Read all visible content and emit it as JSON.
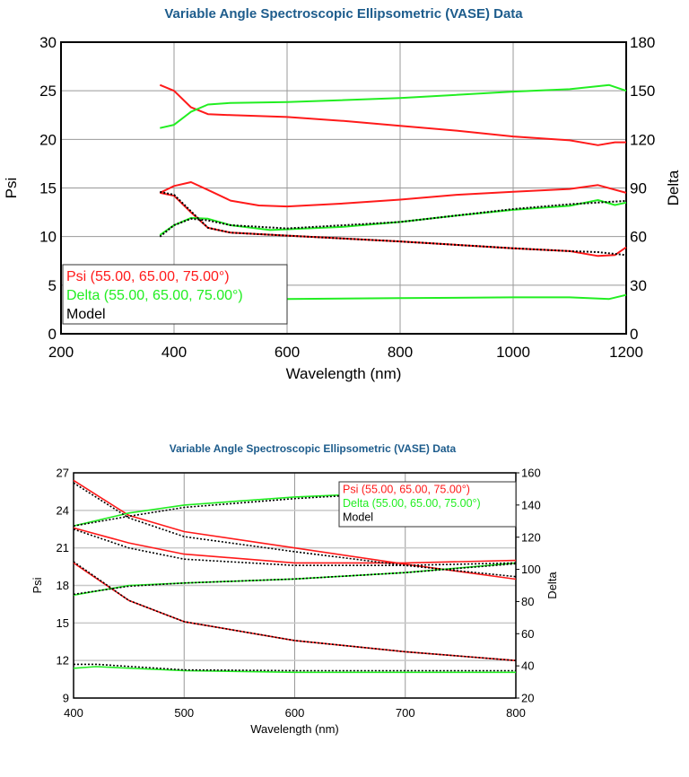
{
  "chart_data": [
    {
      "type": "line",
      "title": "Variable Angle Spectroscopic Ellipsometric (VASE) Data",
      "xlabel": "Wavelength (nm)",
      "ylabel": "Psi",
      "y2label": "Delta",
      "xlim": [
        200,
        1200
      ],
      "ylim": [
        0,
        30
      ],
      "y2lim": [
        0,
        180
      ],
      "xticks": [
        "200",
        "400",
        "600",
        "800",
        "1000",
        "1200"
      ],
      "yticks": [
        "0",
        "5",
        "10",
        "15",
        "20",
        "25",
        "30"
      ],
      "y2ticks": [
        "0",
        "30",
        "60",
        "90",
        "120",
        "150",
        "180"
      ],
      "grid": true,
      "legend_position": "bottom-left",
      "legend": [
        {
          "label": "Psi (55.00, 65.00, 75.00°)",
          "color": "#ff1a1a"
        },
        {
          "label": "Delta (55.00, 65.00, 75.00°)",
          "color": "#22ee22"
        },
        {
          "label": "Model",
          "color": "#000000"
        }
      ],
      "series": [
        {
          "kind": "psi",
          "axis": "left",
          "x": [
            375,
            400,
            430,
            460,
            500,
            600,
            700,
            800,
            900,
            1000,
            1100,
            1150,
            1180,
            1200
          ],
          "y": [
            25.6,
            25.0,
            23.3,
            22.6,
            22.5,
            22.3,
            21.9,
            21.4,
            20.9,
            20.3,
            19.9,
            19.4,
            19.7,
            19.7
          ]
        },
        {
          "kind": "psi",
          "axis": "left",
          "x": [
            375,
            400,
            430,
            460,
            500,
            550,
            600,
            700,
            800,
            900,
            1000,
            1100,
            1150,
            1200
          ],
          "y": [
            14.5,
            15.2,
            15.6,
            14.8,
            13.7,
            13.2,
            13.1,
            13.4,
            13.8,
            14.3,
            14.6,
            14.9,
            15.3,
            14.5
          ]
        },
        {
          "kind": "psi",
          "axis": "left",
          "x": [
            375,
            400,
            430,
            460,
            500,
            600,
            800,
            1000,
            1100,
            1150,
            1180,
            1200
          ],
          "y": [
            14.5,
            14.2,
            12.5,
            10.9,
            10.4,
            10.1,
            9.5,
            8.8,
            8.5,
            8.0,
            8.1,
            8.9
          ]
        },
        {
          "kind": "model",
          "axis": "left",
          "x": [
            375,
            400,
            430,
            460,
            500,
            600,
            800,
            1000,
            1100,
            1150,
            1200
          ],
          "y": [
            14.6,
            14.3,
            12.6,
            10.9,
            10.4,
            10.1,
            9.5,
            8.8,
            8.5,
            8.4,
            8.1
          ]
        },
        {
          "kind": "delta",
          "axis": "right",
          "x": [
            375,
            400,
            430,
            460,
            500,
            600,
            800,
            1000,
            1100,
            1170,
            1200
          ],
          "y": [
            127,
            129,
            137,
            141.5,
            142.5,
            143,
            145.5,
            149.5,
            151,
            153.5,
            150
          ]
        },
        {
          "kind": "delta",
          "axis": "right",
          "x": [
            375,
            400,
            430,
            460,
            500,
            570,
            700,
            800,
            900,
            1000,
            1100,
            1150,
            1180,
            1200
          ],
          "y": [
            61,
            67,
            71.5,
            71,
            67,
            64,
            66,
            69,
            73,
            76.5,
            79,
            82.5,
            79.5,
            81
          ]
        },
        {
          "kind": "model",
          "axis": "right",
          "x": [
            375,
            400,
            430,
            460,
            500,
            600,
            800,
            1000,
            1100,
            1200
          ],
          "y": [
            60,
            67,
            71,
            70,
            67,
            65,
            69,
            77,
            80,
            82
          ]
        },
        {
          "kind": "delta",
          "axis": "right",
          "x": [
            480,
            600,
            800,
            1000,
            1100,
            1170,
            1200
          ],
          "y": [
            21.5,
            21.5,
            22,
            22.5,
            22.5,
            21.5,
            24
          ]
        }
      ]
    },
    {
      "type": "line",
      "title": "Variable Angle Spectroscopic Ellipsometric (VASE) Data",
      "xlabel": "Wavelength (nm)",
      "ylabel": "Psi",
      "y2label": "Delta",
      "xlim": [
        400,
        800
      ],
      "ylim": [
        9,
        27
      ],
      "y2lim": [
        20,
        160
      ],
      "xticks": [
        "400",
        "500",
        "600",
        "700",
        "800"
      ],
      "yticks": [
        "9",
        "12",
        "15",
        "18",
        "21",
        "24",
        "27"
      ],
      "y2ticks": [
        "20",
        "40",
        "60",
        "80",
        "100",
        "120",
        "140",
        "160"
      ],
      "grid": true,
      "legend_position": "top-right",
      "legend": [
        {
          "label": "Psi (55.00, 65.00, 75.00°)",
          "color": "#ff1a1a"
        },
        {
          "label": "Delta (55.00, 65.00, 75.00°)",
          "color": "#22ee22"
        },
        {
          "label": "Model",
          "color": "#000000"
        }
      ],
      "series": [
        {
          "kind": "psi",
          "axis": "left",
          "x": [
            400,
            450,
            500,
            600,
            700,
            800
          ],
          "y": [
            26.4,
            23.6,
            22.3,
            21.0,
            19.7,
            18.5
          ]
        },
        {
          "kind": "model",
          "axis": "left",
          "x": [
            400,
            450,
            500,
            600,
            700,
            800
          ],
          "y": [
            26.2,
            23.4,
            21.9,
            20.7,
            19.6,
            18.7
          ]
        },
        {
          "kind": "psi",
          "axis": "left",
          "x": [
            400,
            450,
            500,
            600,
            700,
            800
          ],
          "y": [
            22.6,
            21.4,
            20.5,
            19.8,
            19.8,
            20.0
          ]
        },
        {
          "kind": "model",
          "axis": "left",
          "x": [
            400,
            450,
            500,
            600,
            700,
            800
          ],
          "y": [
            22.5,
            21.0,
            20.1,
            19.6,
            19.6,
            19.8
          ]
        },
        {
          "kind": "psi",
          "axis": "left",
          "x": [
            400,
            450,
            500,
            600,
            700,
            800
          ],
          "y": [
            19.8,
            16.8,
            15.1,
            13.6,
            12.7,
            12.0
          ]
        },
        {
          "kind": "model",
          "axis": "left",
          "x": [
            400,
            450,
            500,
            600,
            700,
            800
          ],
          "y": [
            19.9,
            16.8,
            15.1,
            13.6,
            12.7,
            12.0
          ]
        },
        {
          "kind": "delta",
          "axis": "right",
          "x": [
            400,
            450,
            500,
            600,
            700,
            800
          ],
          "y": [
            127,
            135,
            140,
            145,
            148,
            150
          ]
        },
        {
          "kind": "model",
          "axis": "right",
          "x": [
            400,
            450,
            500,
            600,
            700,
            800
          ],
          "y": [
            127,
            133,
            138.5,
            144,
            148,
            150
          ]
        },
        {
          "kind": "delta",
          "axis": "right",
          "x": [
            400,
            450,
            500,
            600,
            700,
            800
          ],
          "y": [
            84,
            90,
            91.5,
            94,
            98,
            104
          ]
        },
        {
          "kind": "model",
          "axis": "right",
          "x": [
            400,
            450,
            500,
            600,
            700,
            800
          ],
          "y": [
            84.5,
            89.5,
            91.5,
            94,
            98,
            103.5
          ]
        },
        {
          "kind": "delta",
          "axis": "right",
          "x": [
            400,
            420,
            500,
            600,
            800
          ],
          "y": [
            38.5,
            39.5,
            37,
            36,
            36
          ]
        },
        {
          "kind": "model",
          "axis": "right",
          "x": [
            400,
            420,
            500,
            600,
            800
          ],
          "y": [
            41,
            41,
            37.5,
            37,
            37
          ]
        }
      ]
    }
  ]
}
